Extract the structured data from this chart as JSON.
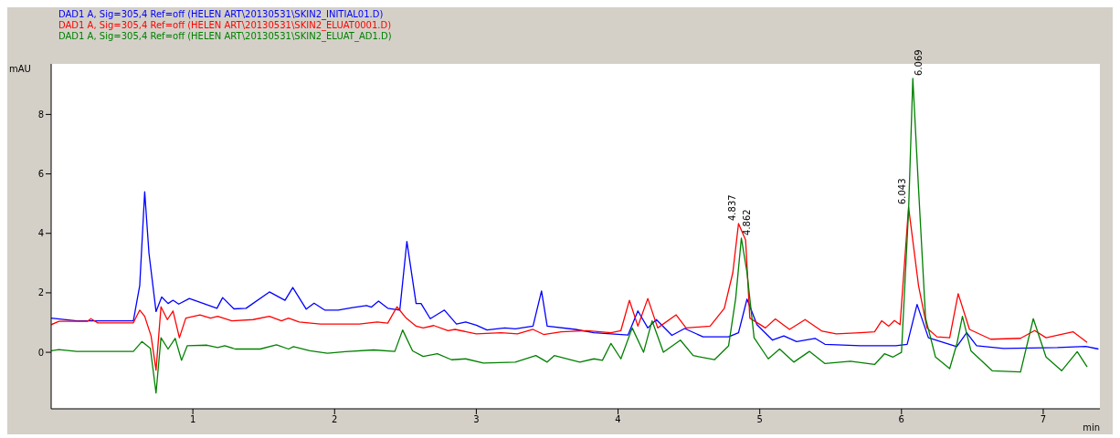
{
  "chart_data": {
    "type": "line",
    "xlabel": "min",
    "ylabel": "mAU",
    "xlim": [
      0,
      7.4
    ],
    "xticks": [
      1,
      2,
      3,
      4,
      5,
      6,
      7
    ],
    "ylim": [
      -1.9,
      9.7
    ],
    "yticks": [
      0,
      2,
      4,
      6,
      8
    ],
    "legend": "top",
    "grid": false,
    "marker": "none",
    "line_style": "solid",
    "annotations": [
      {
        "text": "4.837",
        "x": 4.85,
        "y": 4.33
      },
      {
        "text": "4.862",
        "x": 4.87,
        "y": 3.84
      },
      {
        "text": "6.043",
        "x": 6.05,
        "y": 4.88
      },
      {
        "text": "6.069",
        "x": 6.08,
        "y": 9.21
      }
    ],
    "series": [
      {
        "name": "DAD1 A, Sig=305,4 Ref=off (HELEN ART\\20130531\\SKIN2_INITIAL01.D)",
        "color": "#0000ff",
        "x": [
          0,
          0.18,
          0.58,
          0.625,
          0.66,
          0.69,
          0.74,
          0.78,
          0.825,
          0.86,
          0.9,
          0.975,
          1.075,
          1.17,
          1.21,
          1.29,
          1.375,
          1.54,
          1.65,
          1.705,
          1.8,
          1.855,
          1.93,
          2.025,
          2.125,
          2.225,
          2.26,
          2.31,
          2.375,
          2.46,
          2.51,
          2.575,
          2.61,
          2.675,
          2.775,
          2.86,
          2.925,
          3.0,
          3.075,
          3.2,
          3.275,
          3.4,
          3.46,
          3.5,
          3.7,
          3.83,
          4.07,
          4.14,
          4.21,
          4.27,
          4.38,
          4.47,
          4.6,
          4.78,
          4.85,
          4.91,
          4.98,
          5.09,
          5.17,
          5.26,
          5.39,
          5.46,
          5.71,
          5.96,
          6.04,
          6.11,
          6.19,
          6.39,
          6.46,
          6.53,
          6.72,
          7.1,
          7.3,
          7.39
        ],
        "values": [
          1.15,
          1.06,
          1.06,
          2.25,
          5.4,
          3.34,
          1.37,
          1.86,
          1.64,
          1.75,
          1.62,
          1.81,
          1.64,
          1.48,
          1.84,
          1.46,
          1.48,
          2.03,
          1.75,
          2.18,
          1.45,
          1.65,
          1.42,
          1.42,
          1.5,
          1.57,
          1.52,
          1.72,
          1.48,
          1.42,
          3.73,
          1.64,
          1.64,
          1.13,
          1.42,
          0.95,
          1.02,
          0.91,
          0.75,
          0.82,
          0.79,
          0.88,
          2.06,
          0.88,
          0.77,
          0.66,
          0.58,
          1.39,
          0.82,
          1.1,
          0.57,
          0.8,
          0.52,
          0.52,
          0.66,
          1.79,
          0.93,
          0.41,
          0.55,
          0.36,
          0.47,
          0.27,
          0.22,
          0.22,
          0.27,
          1.61,
          0.49,
          0.19,
          0.66,
          0.22,
          0.13,
          0.16,
          0.2,
          0.11
        ]
      },
      {
        "name": "DAD1 A, Sig=305,4 Ref=off (HELEN ART\\20130531\\SKIN2_ELUAT0001.D)",
        "color": "#ff0000",
        "x": [
          0,
          0.055,
          0.255,
          0.28,
          0.33,
          0.58,
          0.625,
          0.66,
          0.705,
          0.74,
          0.775,
          0.82,
          0.86,
          0.905,
          0.95,
          1.05,
          1.125,
          1.175,
          1.275,
          1.425,
          1.54,
          1.625,
          1.675,
          1.75,
          1.9,
          2.175,
          2.3,
          2.375,
          2.44,
          2.505,
          2.575,
          2.625,
          2.7,
          2.8,
          2.85,
          3.0,
          3.175,
          3.29,
          3.4,
          3.475,
          3.6,
          3.78,
          3.95,
          4.02,
          4.08,
          4.14,
          4.21,
          4.28,
          4.41,
          4.48,
          4.65,
          4.75,
          4.81,
          4.85,
          4.9,
          4.93,
          5.04,
          5.11,
          5.21,
          5.32,
          5.44,
          5.54,
          5.71,
          5.81,
          5.86,
          5.91,
          5.95,
          5.99,
          6.05,
          6.12,
          6.18,
          6.25,
          6.34,
          6.4,
          6.48,
          6.63,
          6.84,
          6.94,
          7.02,
          7.21,
          7.31
        ],
        "values": [
          0.93,
          1.04,
          1.04,
          1.13,
          0.99,
          0.99,
          1.42,
          1.21,
          0.55,
          -0.6,
          1.53,
          1.1,
          1.39,
          0.49,
          1.15,
          1.26,
          1.15,
          1.21,
          1.06,
          1.1,
          1.21,
          1.06,
          1.15,
          1.02,
          0.95,
          0.95,
          1.02,
          0.98,
          1.53,
          1.15,
          0.88,
          0.82,
          0.9,
          0.73,
          0.77,
          0.62,
          0.66,
          0.62,
          0.77,
          0.6,
          0.69,
          0.73,
          0.66,
          0.73,
          1.75,
          0.88,
          1.81,
          0.82,
          1.26,
          0.82,
          0.88,
          1.48,
          2.68,
          4.33,
          3.78,
          1.15,
          0.82,
          1.12,
          0.77,
          1.1,
          0.71,
          0.62,
          0.66,
          0.69,
          1.06,
          0.88,
          1.07,
          0.93,
          4.88,
          2.25,
          0.82,
          0.52,
          0.49,
          1.97,
          0.77,
          0.44,
          0.47,
          0.73,
          0.49,
          0.69,
          0.33
        ]
      },
      {
        "name": "DAD1 A, Sig=305,4 Ref=off (HELEN ART\\20130531\\SKIN2_ELUAT_AD1.D)",
        "color": "#008000",
        "x": [
          0,
          0.055,
          0.18,
          0.58,
          0.64,
          0.7,
          0.74,
          0.775,
          0.825,
          0.875,
          0.92,
          0.96,
          1.1,
          1.175,
          1.225,
          1.3,
          1.475,
          1.59,
          1.675,
          1.71,
          1.825,
          1.95,
          2.075,
          2.275,
          2.425,
          2.48,
          2.55,
          2.625,
          2.725,
          2.825,
          2.925,
          3.05,
          3.275,
          3.42,
          3.5,
          3.55,
          3.73,
          3.83,
          3.89,
          3.95,
          4.02,
          4.1,
          4.18,
          4.24,
          4.32,
          4.44,
          4.53,
          4.68,
          4.78,
          4.83,
          4.87,
          4.91,
          4.96,
          5.06,
          5.14,
          5.24,
          5.35,
          5.46,
          5.64,
          5.81,
          5.88,
          5.94,
          6.0,
          6.05,
          6.08,
          6.12,
          6.17,
          6.24,
          6.34,
          6.39,
          6.43,
          6.49,
          6.64,
          6.84,
          6.93,
          7.02,
          7.13,
          7.24,
          7.31
        ],
        "values": [
          0.05,
          0.09,
          0.03,
          0.03,
          0.36,
          0.13,
          -1.37,
          0.49,
          0.11,
          0.47,
          -0.27,
          0.22,
          0.24,
          0.16,
          0.22,
          0.11,
          0.11,
          0.25,
          0.11,
          0.19,
          0.05,
          -0.03,
          0.02,
          0.08,
          0.03,
          0.75,
          0.05,
          -0.14,
          -0.05,
          -0.25,
          -0.22,
          -0.36,
          -0.33,
          -0.11,
          -0.33,
          -0.11,
          -0.33,
          -0.22,
          -0.27,
          0.3,
          -0.22,
          0.82,
          0.0,
          1.06,
          0.0,
          0.41,
          -0.11,
          -0.25,
          0.22,
          1.81,
          3.84,
          2.68,
          0.49,
          -0.22,
          0.11,
          -0.33,
          0.03,
          -0.38,
          -0.3,
          -0.41,
          -0.05,
          -0.16,
          0.0,
          4.77,
          9.21,
          5.53,
          1.15,
          -0.16,
          -0.55,
          0.27,
          1.21,
          0.05,
          -0.62,
          -0.66,
          1.13,
          -0.16,
          -0.62,
          0.02,
          -0.49
        ]
      }
    ]
  }
}
